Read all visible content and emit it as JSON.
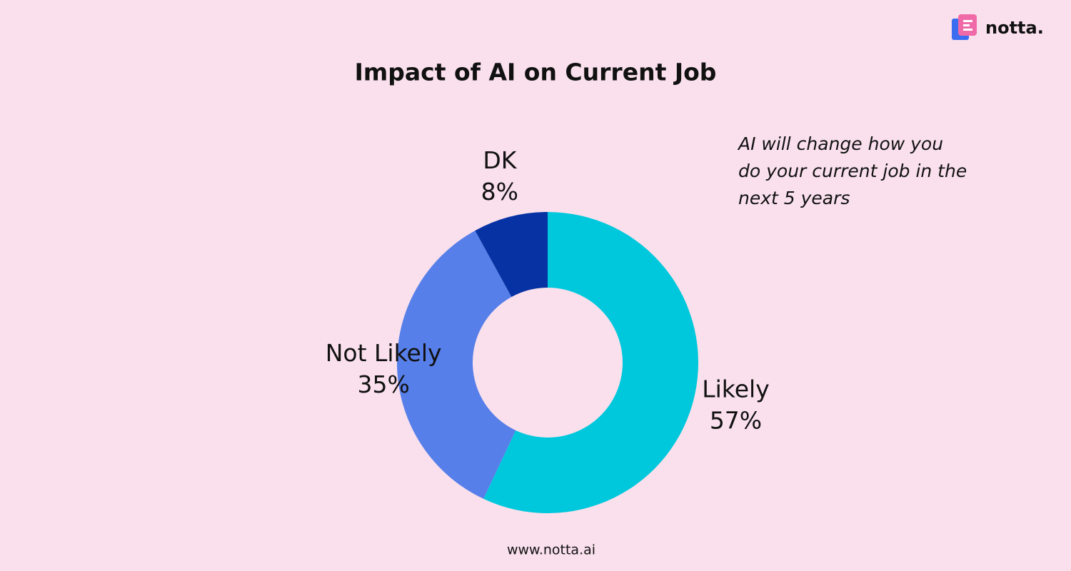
{
  "brand": "notta.",
  "footer": "www.notta.ai",
  "chart_data": {
    "type": "pie",
    "title": "Impact of AI on Current Job",
    "annotation": [
      "AI will change how you",
      "do your current job in the",
      "next 5 years"
    ],
    "categories": [
      "Likely",
      "Not Likely",
      "DK"
    ],
    "values": [
      57,
      35,
      8
    ],
    "value_labels": [
      "57%",
      "35%",
      "8%"
    ],
    "colors": [
      "#00c8dc",
      "#577fe9",
      "#0632a4"
    ],
    "donut": true
  }
}
